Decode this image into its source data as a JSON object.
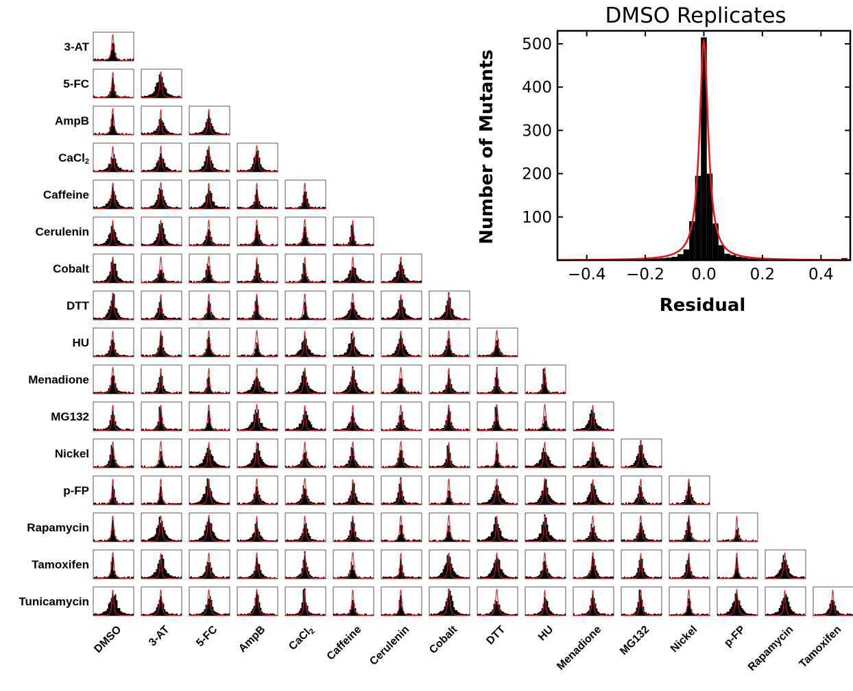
{
  "chart_data": [
    {
      "type": "histogram-grid",
      "row_labels": [
        "3-AT",
        "5-FC",
        "AmpB",
        "CaCl2",
        "Caffeine",
        "Cerulenin",
        "Cobalt",
        "DTT",
        "HU",
        "Menadione",
        "MG132",
        "Nickel",
        "p-FP",
        "Rapamycin",
        "Tamoxifen",
        "Tunicamycin"
      ],
      "column_labels": [
        "DMSO",
        "3-AT",
        "5-FC",
        "AmpB",
        "CaCl2",
        "Caffeine",
        "Cerulenin",
        "Cobalt",
        "DTT",
        "HU",
        "Menadione",
        "MG132",
        "Nickel",
        "p-FP",
        "Rapamycin",
        "Tamoxifen"
      ],
      "layout": "lower-triangle",
      "histogram_color": "#000000",
      "fit_color": "#e41a1c"
    },
    {
      "type": "bar",
      "title": "DMSO Replicates",
      "xlabel": "Residual",
      "ylabel": "Number of Mutants",
      "xlim": [
        -0.5,
        0.5
      ],
      "ylim": [
        0,
        530
      ],
      "xticks": [
        -0.4,
        -0.2,
        0.0,
        0.2,
        0.4
      ],
      "xtick_labels": [
        "−0.4",
        "−0.2",
        "0.0",
        "0.2",
        "0.4"
      ],
      "yticks": [
        100,
        200,
        300,
        400,
        500
      ],
      "bin_width": 0.02,
      "bins": [
        [
          -0.36,
          1
        ],
        [
          -0.32,
          1
        ],
        [
          -0.28,
          2
        ],
        [
          -0.24,
          1
        ],
        [
          -0.22,
          2
        ],
        [
          -0.2,
          3
        ],
        [
          -0.18,
          4
        ],
        [
          -0.16,
          4
        ],
        [
          -0.14,
          5
        ],
        [
          -0.12,
          6
        ],
        [
          -0.1,
          8
        ],
        [
          -0.08,
          14
        ],
        [
          -0.06,
          25
        ],
        [
          -0.04,
          90
        ],
        [
          -0.02,
          195
        ],
        [
          0.0,
          515
        ],
        [
          0.02,
          200
        ],
        [
          0.04,
          85
        ],
        [
          0.06,
          35
        ],
        [
          0.08,
          15
        ],
        [
          0.1,
          12
        ],
        [
          0.12,
          8
        ],
        [
          0.14,
          6
        ],
        [
          0.16,
          4
        ],
        [
          0.18,
          3
        ],
        [
          0.2,
          3
        ],
        [
          0.24,
          2
        ],
        [
          0.28,
          2
        ],
        [
          0.32,
          1
        ],
        [
          0.36,
          1
        ],
        [
          0.4,
          1
        ],
        [
          0.44,
          1
        ],
        [
          0.48,
          5
        ]
      ],
      "fit": {
        "type": "lorentzian",
        "center": 0.0,
        "peak": 505,
        "width": 0.018
      },
      "colors": {
        "bars": "#000000",
        "fit": "#e41a1c"
      }
    }
  ]
}
